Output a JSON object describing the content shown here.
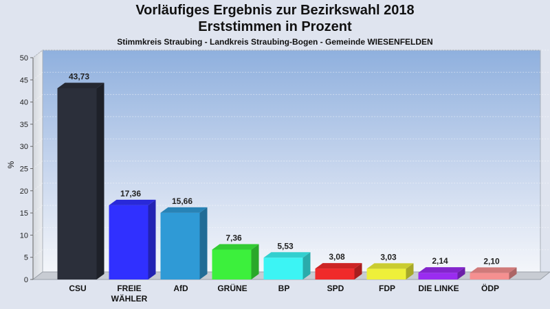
{
  "chart_data": {
    "type": "bar",
    "title": "Vorläufiges Ergebnis zur Bezirkswahl 2018",
    "title_line2": "Erststimmen in Prozent",
    "subtitle": "Stimmkreis Straubing - Landkreis Straubing-Bogen - Gemeinde WIESENFELDEN",
    "ylabel": "%",
    "ylim": [
      0,
      50
    ],
    "yticks": [
      "0",
      "5",
      "10",
      "15",
      "20",
      "25",
      "30",
      "35",
      "40",
      "45",
      "50"
    ],
    "grid": true,
    "categories": [
      {
        "label": "CSU",
        "value": 43.73,
        "value_label": "43,73",
        "color": "#2b2f3a"
      },
      {
        "label": "FREIE\nWÄHLER",
        "value": 17.36,
        "value_label": "17,36",
        "color": "#3030ff"
      },
      {
        "label": "AfD",
        "value": 15.66,
        "value_label": "15,66",
        "color": "#2f9ad6"
      },
      {
        "label": "GRÜNE",
        "value": 7.36,
        "value_label": "7,36",
        "color": "#3cf03c"
      },
      {
        "label": "BP",
        "value": 5.53,
        "value_label": "5,53",
        "color": "#3cf4f4"
      },
      {
        "label": "SPD",
        "value": 3.08,
        "value_label": "3,08",
        "color": "#f02a2a"
      },
      {
        "label": "FDP",
        "value": 3.03,
        "value_label": "3,03",
        "color": "#eef03a"
      },
      {
        "label": "DIE LINKE",
        "value": 2.14,
        "value_label": "2,14",
        "color": "#9a2cf0"
      },
      {
        "label": "ÖDP",
        "value": 2.1,
        "value_label": "2,10",
        "color": "#f59090"
      }
    ]
  }
}
